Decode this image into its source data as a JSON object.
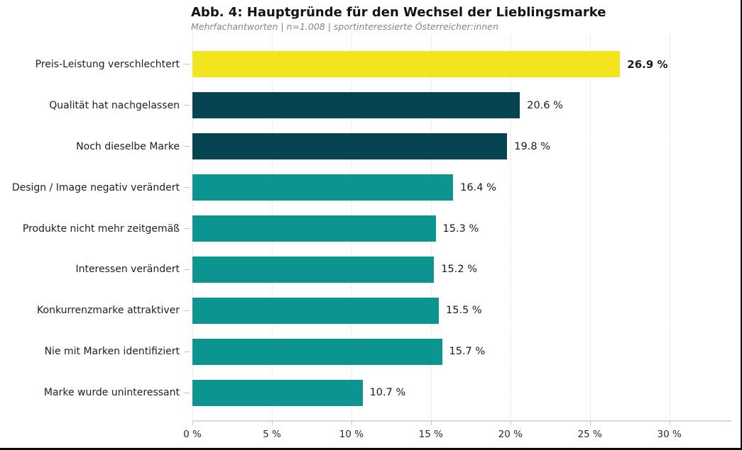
{
  "figure": {
    "title": "Abb. 4: Hauptgründe für den Wechsel der Lieblingsmarke",
    "subtitle": "Mehrfachantworten | n=1.008 | sportinteressierte Österreicher:innen"
  },
  "chart_data": {
    "type": "bar",
    "orientation": "horizontal",
    "title": "Abb. 4: Hauptgründe für den Wechsel der Lieblingsmarke",
    "subtitle": "Mehrfachantworten | n=1.008 | sportinteressierte Österreicher:innen",
    "categories": [
      "Preis-Leistung verschlechtert",
      "Qualität hat nachgelassen",
      "Noch dieselbe Marke",
      "Design / Image negativ verändert",
      "Produkte nicht mehr zeitgemäß",
      "Interessen verändert",
      "Konkurrenzmarke attraktiver",
      "Nie mit Marken identifiziert",
      "Marke wurde uninteressant"
    ],
    "values": [
      26.9,
      20.6,
      19.8,
      16.4,
      15.3,
      15.2,
      15.5,
      15.7,
      10.7
    ],
    "value_labels": [
      "26.9 %",
      "20.6 %",
      "19.8 %",
      "16.4 %",
      "15.3 %",
      "15.2 %",
      "15.5 %",
      "15.7 %",
      "10.7 %"
    ],
    "bar_colors": [
      "#F3E51D",
      "#074452",
      "#074452",
      "#0B9490",
      "#0B9490",
      "#0B9490",
      "#0B9490",
      "#0B9490",
      "#0B9490"
    ],
    "emphasized_index": 0,
    "xlabel": "",
    "ylabel": "",
    "xlim": [
      0,
      33.9
    ],
    "x_ticks": [
      0,
      5,
      10,
      15,
      20,
      25,
      30
    ],
    "x_tick_labels": [
      "0 %",
      "5 %",
      "10 %",
      "15 %",
      "20 %",
      "25 %",
      "30 %"
    ],
    "grid": "vertical-dashed",
    "legend": "none"
  },
  "colors": {
    "accent_yellow": "#F3E51D",
    "dark_teal": "#074452",
    "teal": "#0B9490",
    "gridline": "#E4E4E6",
    "axis": "#D8D8D8",
    "text": "#1A1A1A",
    "subtitle_text": "#858585"
  }
}
